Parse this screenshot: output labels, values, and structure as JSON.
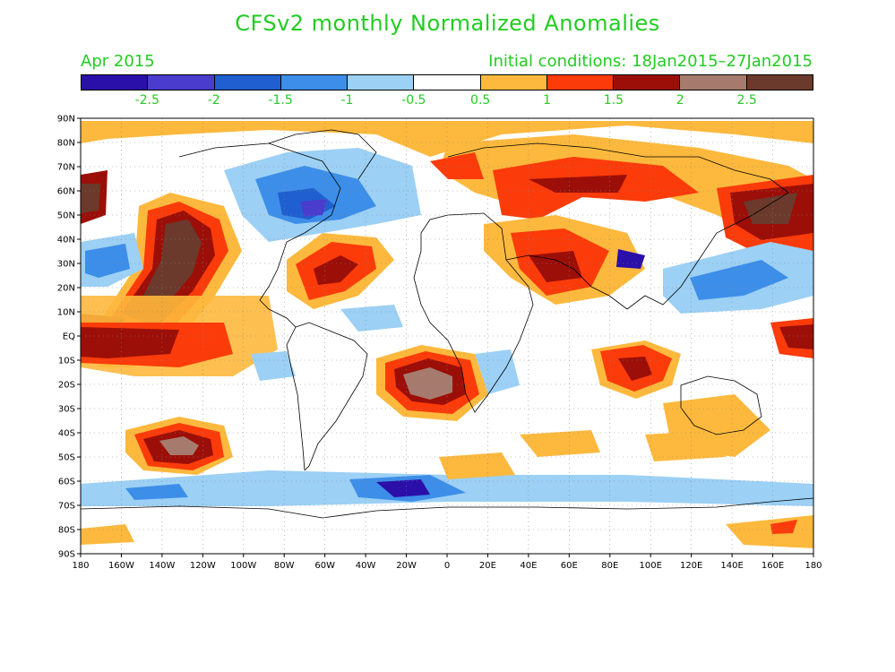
{
  "header": {
    "title": "CFSv2 monthly Normalized Anomalies",
    "valid_month": "Apr 2015",
    "initial_conditions": "Initial conditions: 18Jan2015–27Jan2015"
  },
  "legend": {
    "colors": [
      "#2a0fa8",
      "#4a3ccc",
      "#1f5fcf",
      "#3d8ee8",
      "#9cd0f5",
      "#ffffff",
      "#fdb93d",
      "#fb3b0a",
      "#9b0f08",
      "#a67b6e",
      "#6b3a2c"
    ],
    "labels": [
      "-2.5",
      "-2",
      "-1.5",
      "-1",
      "-0.5",
      "0.5",
      "1",
      "1.5",
      "2",
      "2.5"
    ]
  },
  "axes": {
    "lon_labels": [
      "180",
      "160W",
      "140W",
      "120W",
      "100W",
      "80W",
      "60W",
      "40W",
      "20W",
      "0",
      "20E",
      "40E",
      "60E",
      "80E",
      "100E",
      "120E",
      "140E",
      "160E",
      "180"
    ],
    "lat_labels": [
      "90N",
      "80N",
      "70N",
      "60N",
      "50N",
      "40N",
      "30N",
      "20N",
      "10N",
      "EQ",
      "10S",
      "20S",
      "30S",
      "40S",
      "50S",
      "60S",
      "70S",
      "80S",
      "90S"
    ],
    "grid": "dotted"
  }
}
